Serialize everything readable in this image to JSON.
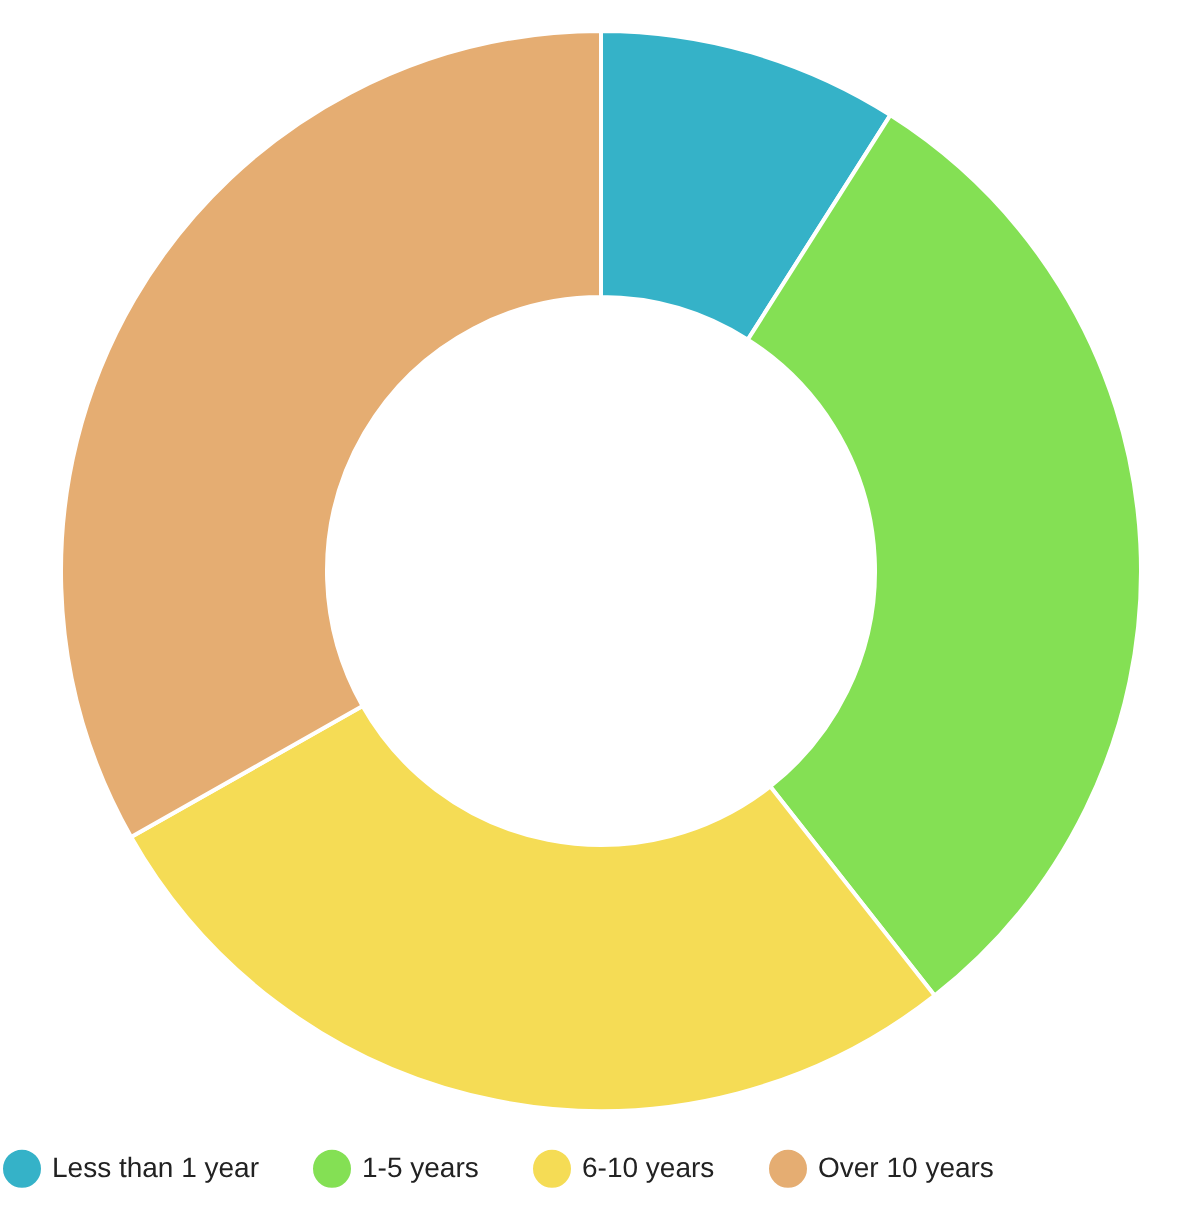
{
  "chart_data": {
    "type": "donut",
    "categories": [
      "Less than 1 year",
      "1-5 years",
      "6-10 years",
      "Over 10 years"
    ],
    "values": [
      9.0,
      30.4,
      27.4,
      33.2
    ],
    "colors": [
      "#35b2c8",
      "#84e054",
      "#f5dc55",
      "#e5ad72"
    ],
    "legend": "bottom"
  }
}
